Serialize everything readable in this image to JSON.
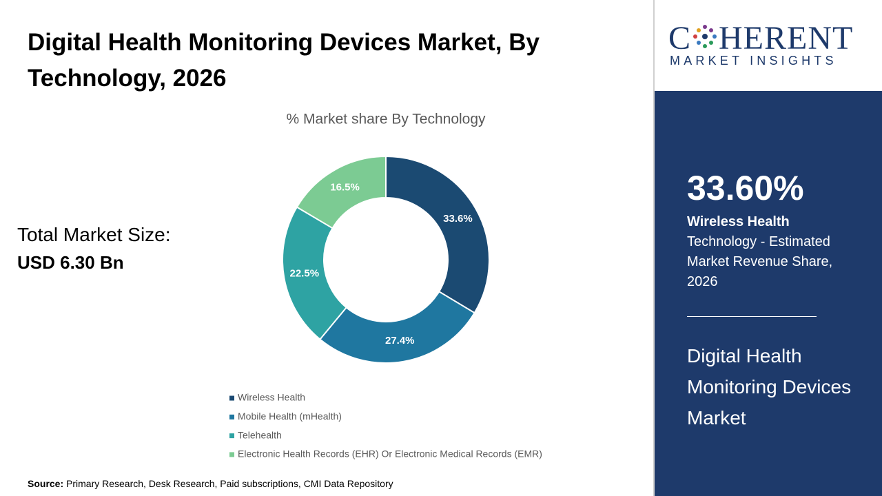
{
  "header": {
    "title": "Digital Health Monitoring Devices Market, By Technology, 2026"
  },
  "chart_data": {
    "type": "donut",
    "title": "% Market share By Technology",
    "categories": [
      "Wireless Health",
      "Mobile Health (mHealth)",
      "Telehealth",
      "Electronic Health Records (EHR) Or Electronic Medical Records (EMR)"
    ],
    "values": [
      33.6,
      27.4,
      22.5,
      16.5
    ],
    "value_labels": [
      "33.6%",
      "27.4%",
      "22.5%",
      "16.5%"
    ],
    "colors": [
      "#1b4a72",
      "#1f77a0",
      "#2ea3a3",
      "#7ccb93"
    ],
    "legend": "bottom"
  },
  "market_size": {
    "label": "Total Market Size:",
    "value": "USD 6.30 Bn"
  },
  "logo": {
    "name_start": "C",
    "name_end": "HERENT",
    "tagline": "MARKET INSIGHTS"
  },
  "sidebar": {
    "highlight": "33.60%",
    "segment": "Wireless Health",
    "description": "Technology - Estimated Market Revenue Share, 2026",
    "market": "Digital Health Monitoring Devices Market"
  },
  "source": {
    "label": "Source:",
    "text": "Primary Research, Desk Research, Paid subscriptions, CMI Data Repository"
  }
}
